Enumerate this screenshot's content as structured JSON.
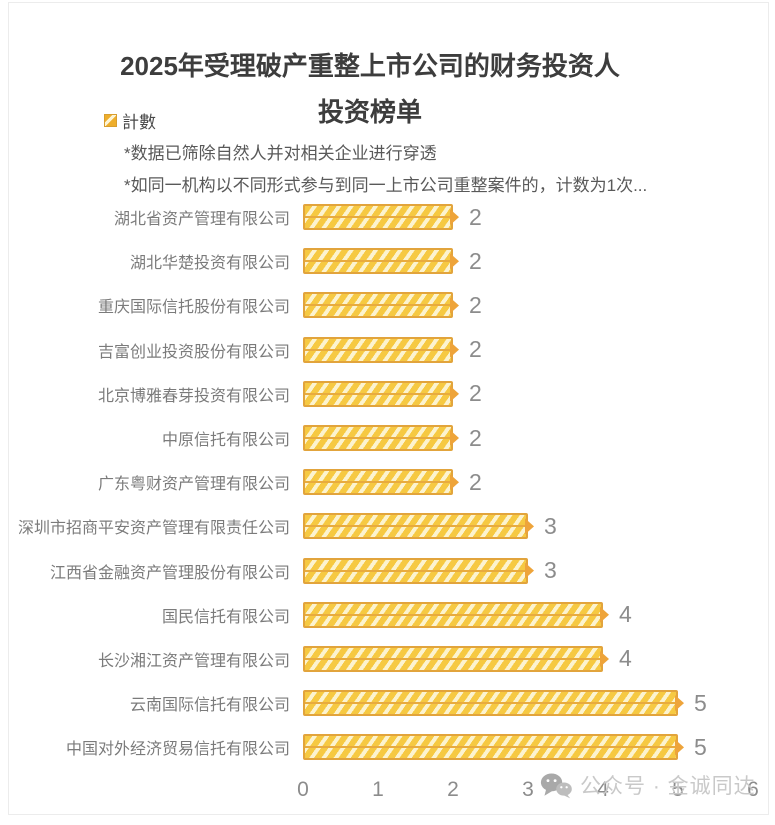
{
  "title": {
    "line1": "2025年受理破产重整上市公司的财务投资人",
    "line2": "投资榜单"
  },
  "legend": {
    "label": "計數"
  },
  "notes": {
    "note1": "*数据已筛除自然人并对相关企业进行穿透",
    "note2": "*如同一机构以不同形式参与到同一上市公司重整案件的，计数为1次..."
  },
  "watermark": {
    "text": "公众号 · 金诚同达"
  },
  "chart_data": {
    "type": "bar",
    "orientation": "horizontal",
    "series_name": "計數",
    "title": "2025年受理破产重整上市公司的财务投资人投资榜单",
    "categories": [
      "湖北省资产管理有限公司",
      "湖北华楚投资有限公司",
      "重庆国际信托股份有限公司",
      "吉富创业投资股份有限公司",
      "北京博雅春芽投资有限公司",
      "中原信托有限公司",
      "广东粤财资产管理有限公司",
      "深圳市招商平安资产管理有限责任公司",
      "江西省金融资产管理股份有限公司",
      "国民信托有限公司",
      "长沙湘江资产管理有限公司",
      "云南国际信托有限公司",
      "中国对外经济贸易信托有限公司"
    ],
    "values": [
      2,
      2,
      2,
      2,
      2,
      2,
      2,
      3,
      3,
      4,
      4,
      5,
      5
    ],
    "xlim": [
      0,
      6
    ],
    "x_ticks": [
      "0",
      "1",
      "2",
      "3",
      "4",
      "5",
      "6"
    ],
    "grid": false,
    "legend_position": "top-left",
    "data_labels": true,
    "colors": {
      "bar_fill": "#f6c942",
      "bar_stripe": "#fcf3cf",
      "bar_border": "#e2a43c",
      "bar_tip": "#eea43a",
      "title_text": "#3d3d3d",
      "category_text": "#7b7b7b",
      "value_text": "#8c8c8c",
      "note_text": "#595959",
      "watermark_text": "#c9c9c9"
    }
  }
}
